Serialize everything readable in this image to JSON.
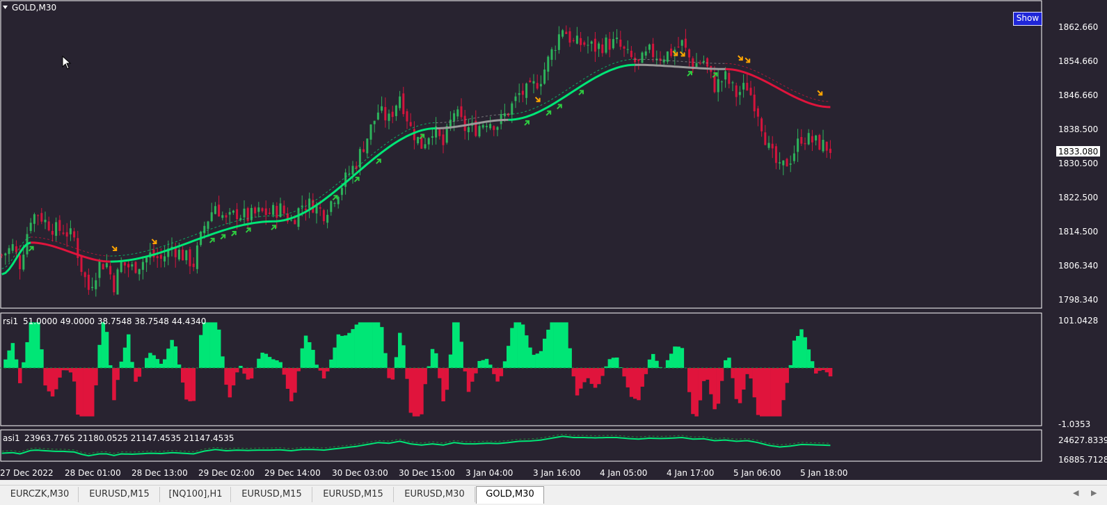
{
  "window": {
    "symbol_title": "GOLD,M30"
  },
  "show_button": {
    "label": "Show"
  },
  "price_axis": {
    "labels": [
      "1862.660",
      "1854.660",
      "1846.660",
      "1838.500",
      "1830.500",
      "1822.500",
      "1814.500",
      "1806.340",
      "1798.340"
    ],
    "current_price": "1833.080"
  },
  "rsi_panel": {
    "label": "rsi1",
    "values_text": "51.0000 49.0000 38.7548 38.7548 44.4340",
    "axis_top": "101.0428",
    "axis_bottom": "-1.0353"
  },
  "asi_panel": {
    "label": "asi1",
    "values_text": "23963.7765 21180.0525 21147.4535 21147.4535",
    "axis_top": "24627.8339",
    "axis_bottom": "16885.7128"
  },
  "time_axis": {
    "labels": [
      "27 Dec 2022",
      "28 Dec 01:00",
      "28 Dec 13:00",
      "29 Dec 02:00",
      "29 Dec 14:00",
      "30 Dec 03:00",
      "30 Dec 15:00",
      "3 Jan 04:00",
      "3 Jan 16:00",
      "4 Jan 05:00",
      "4 Jan 17:00",
      "5 Jan 06:00",
      "5 Jan 18:00"
    ]
  },
  "tabs": [
    {
      "label": "EURCZK,M30",
      "active": false
    },
    {
      "label": "EURUSD,M15",
      "active": false
    },
    {
      "label": "[NQ100],H1",
      "active": false
    },
    {
      "label": "EURUSD,M15",
      "active": false
    },
    {
      "label": "EURUSD,M15",
      "active": false
    },
    {
      "label": "EURUSD,M30",
      "active": false
    },
    {
      "label": "GOLD,M30",
      "active": true
    }
  ],
  "colors": {
    "background": "#282330",
    "bull": "#00e676",
    "bear": "#e0143c",
    "neutral": "#9a9a9a",
    "arrow_up": "#2ecc40",
    "arrow_down": "#ffa500"
  },
  "chart_data": {
    "type": "candlestick",
    "symbol": "GOLD",
    "timeframe": "M30",
    "y_range": [
      1796.0,
      1867.0
    ],
    "price_ticks": [
      1862.66,
      1854.66,
      1846.66,
      1838.5,
      1830.5,
      1822.5,
      1814.5,
      1806.34,
      1798.34
    ],
    "current_price": 1833.08,
    "time_labels": [
      "27 Dec 2022",
      "28 Dec 01:00",
      "28 Dec 13:00",
      "29 Dec 02:00",
      "29 Dec 14:00",
      "30 Dec 03:00",
      "30 Dec 15:00",
      "3 Jan 04:00",
      "3 Jan 16:00",
      "4 Jan 05:00",
      "4 Jan 17:00",
      "5 Jan 06:00",
      "5 Jan 18:00"
    ],
    "close_path": [
      [
        0,
        1808
      ],
      [
        3,
        1810
      ],
      [
        5,
        1806
      ],
      [
        8,
        1817
      ],
      [
        10,
        1818
      ],
      [
        12,
        1816
      ],
      [
        15,
        1814
      ],
      [
        17,
        1814
      ],
      [
        20,
        1812
      ],
      [
        22,
        1805
      ],
      [
        24,
        1800
      ],
      [
        27,
        1806
      ],
      [
        29,
        1806
      ],
      [
        31,
        1801
      ],
      [
        33,
        1806
      ],
      [
        36,
        1805
      ],
      [
        38,
        1806
      ],
      [
        41,
        1808
      ],
      [
        44,
        1807
      ],
      [
        47,
        1810
      ],
      [
        50,
        1808
      ],
      [
        53,
        1806
      ],
      [
        56,
        1815
      ],
      [
        59,
        1820
      ],
      [
        62,
        1816
      ],
      [
        65,
        1818
      ],
      [
        68,
        1817
      ],
      [
        71,
        1818
      ],
      [
        74,
        1818
      ],
      [
        77,
        1819
      ],
      [
        80,
        1816
      ],
      [
        83,
        1820
      ],
      [
        86,
        1820
      ],
      [
        89,
        1818
      ],
      [
        92,
        1822
      ],
      [
        95,
        1826
      ],
      [
        98,
        1830
      ],
      [
        101,
        1836
      ],
      [
        104,
        1842
      ],
      [
        107,
        1840
      ],
      [
        110,
        1846
      ],
      [
        113,
        1838
      ],
      [
        116,
        1834
      ],
      [
        119,
        1838
      ],
      [
        122,
        1834
      ],
      [
        125,
        1842
      ],
      [
        128,
        1838
      ],
      [
        131,
        1838
      ],
      [
        134,
        1840
      ],
      [
        137,
        1839
      ],
      [
        140,
        1842
      ],
      [
        143,
        1846
      ],
      [
        146,
        1847
      ],
      [
        149,
        1850
      ],
      [
        152,
        1856
      ],
      [
        155,
        1862
      ],
      [
        158,
        1858
      ],
      [
        161,
        1858
      ],
      [
        164,
        1857
      ],
      [
        167,
        1858
      ],
      [
        170,
        1858
      ],
      [
        173,
        1855
      ],
      [
        176,
        1853
      ],
      [
        179,
        1856
      ],
      [
        182,
        1855
      ],
      [
        185,
        1856
      ],
      [
        188,
        1858
      ],
      [
        191,
        1853
      ],
      [
        194,
        1854
      ],
      [
        197,
        1848
      ],
      [
        200,
        1850
      ],
      [
        203,
        1846
      ],
      [
        206,
        1848
      ],
      [
        209,
        1842
      ],
      [
        212,
        1833
      ],
      [
        215,
        1828
      ],
      [
        218,
        1831
      ],
      [
        221,
        1836
      ],
      [
        224,
        1835
      ],
      [
        227,
        1834
      ],
      [
        229,
        1833.08
      ]
    ],
    "moving_average": [
      {
        "start": 0,
        "end": 8,
        "from": 1803.5,
        "to": 1811,
        "trend": "up"
      },
      {
        "start": 8,
        "end": 30,
        "from": 1811,
        "to": 1806.5,
        "trend": "down"
      },
      {
        "start": 30,
        "end": 75,
        "from": 1806.5,
        "to": 1816,
        "trend": "up"
      },
      {
        "start": 75,
        "end": 120,
        "from": 1816,
        "to": 1838,
        "trend": "up"
      },
      {
        "start": 120,
        "end": 140,
        "from": 1838,
        "to": 1840,
        "trend": "flat"
      },
      {
        "start": 140,
        "end": 175,
        "from": 1840,
        "to": 1853,
        "trend": "up"
      },
      {
        "start": 175,
        "end": 200,
        "from": 1853,
        "to": 1852,
        "trend": "flat"
      },
      {
        "start": 200,
        "end": 229,
        "from": 1852,
        "to": 1843,
        "trend": "down"
      }
    ],
    "rsi": {
      "range": [
        -1.0353,
        101.0428
      ],
      "last_values": [
        51.0,
        49.0,
        38.7548,
        38.7548,
        44.434
      ]
    },
    "asi": {
      "range": [
        16885.7128,
        24627.8339
      ],
      "last_values": [
        23963.7765,
        21180.0525,
        21147.4535,
        21147.4535
      ]
    }
  }
}
